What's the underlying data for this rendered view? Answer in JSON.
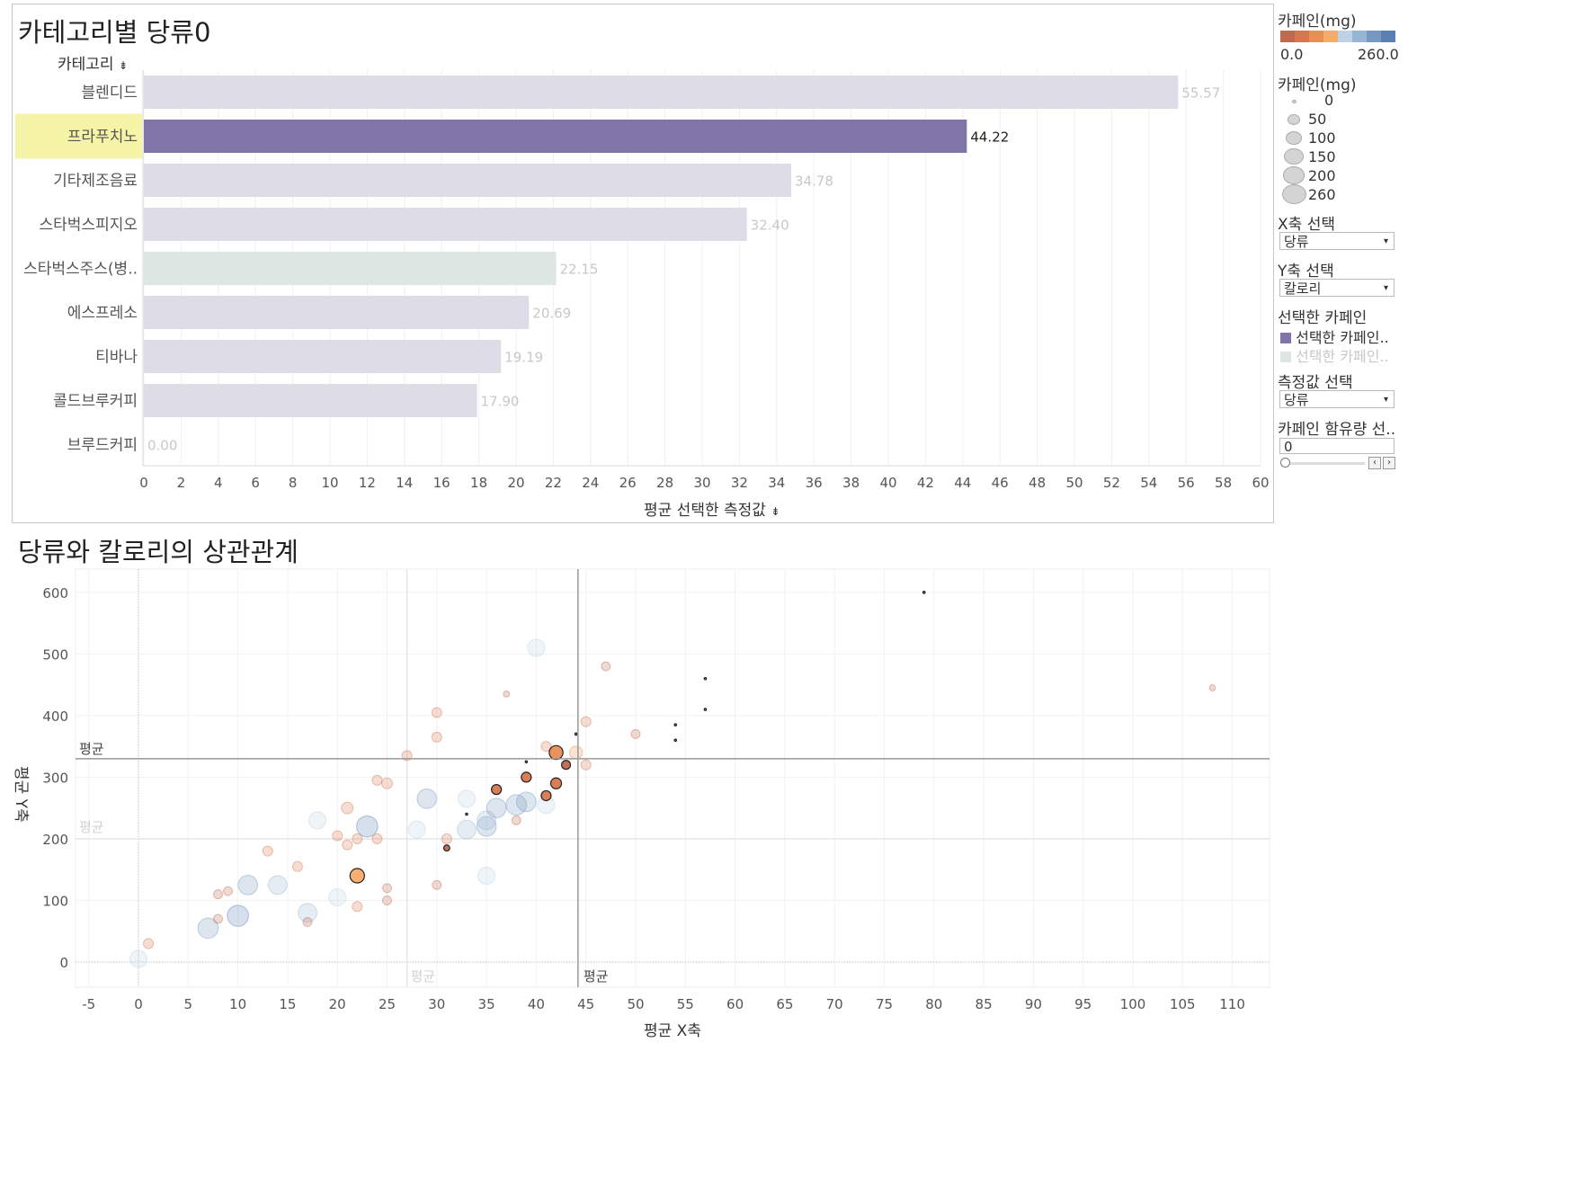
{
  "top_chart": {
    "title": "카테고리별 당류0",
    "category_header": "카테고리",
    "x_axis_label": "평균 선택한 측정값",
    "highlight_color": "#f6f4a6",
    "selected_color": "#8074a8",
    "secondary_color": "#dde6e2",
    "default_color": "#dedce6"
  },
  "bottom_chart": {
    "title": "당류와 칼로리의 상관관계",
    "x_axis_label": "평균 X축",
    "y_axis_label": "평균 Y축",
    "ref_x_label": "평균",
    "ref_x_label_faint": "평균",
    "ref_y_label": "평균",
    "ref_y_label_faint": "평균"
  },
  "sidebar": {
    "color_legend_title": "카페인(mg)",
    "color_min": "0.0",
    "color_max": "260.0",
    "color_scale": [
      "#c1694f",
      "#d8774f",
      "#e98e54",
      "#f6ad6a",
      "#bdd2e4",
      "#97b6d4",
      "#7799c1",
      "#5a7fb2"
    ],
    "size_legend_title": "카페인(mg)",
    "size_items": [
      "0",
      "50",
      "100",
      "150",
      "200",
      "260"
    ],
    "x_select_label": "X축 선택",
    "x_select_value": "당류",
    "y_select_label": "Y축 선택",
    "y_select_value": "칼로리",
    "selected_caffeine_label": "선택한 카페인",
    "selected_caffeine_items": [
      "선택한 카페인..",
      "선택한 카페인.."
    ],
    "measure_select_label": "측정값 선택",
    "measure_select_value": "당류",
    "caffeine_amount_label": "카페인 함유량 선..",
    "caffeine_amount_value": "0"
  },
  "chart_data": [
    {
      "type": "bar",
      "title": "카테고리별 당류0",
      "xlabel": "평균 선택한 측정값",
      "ylabel": "카테고리",
      "categories": [
        "블렌디드",
        "프라푸치노",
        "기타제조음료",
        "스타벅스피지오",
        "스타벅스주스(병..",
        "에스프레소",
        "티바나",
        "콜드브루커피",
        "브루드커피"
      ],
      "values": [
        55.57,
        44.22,
        34.78,
        32.4,
        22.15,
        20.69,
        19.19,
        17.9,
        0.0
      ],
      "value_labels": [
        "55.57",
        "44.22",
        "34.78",
        "32.40",
        "22.15",
        "20.69",
        "19.19",
        "17.90",
        "0.00"
      ],
      "selected": "프라푸치노",
      "secondary": "스타벅스주스(병..",
      "xlim": [
        0,
        60
      ],
      "xticks": [
        0,
        2,
        4,
        6,
        8,
        10,
        12,
        14,
        16,
        18,
        20,
        22,
        24,
        26,
        28,
        30,
        32,
        34,
        36,
        38,
        40,
        42,
        44,
        46,
        48,
        50,
        52,
        54,
        56,
        58,
        60
      ]
    },
    {
      "type": "scatter",
      "title": "당류와 칼로리의 상관관계",
      "xlabel": "평균 X축",
      "ylabel": "평균 Y축",
      "xlim": [
        -5,
        114
      ],
      "ylim": [
        -40,
        630
      ],
      "xticks": [
        -5,
        0,
        5,
        10,
        15,
        20,
        25,
        30,
        35,
        40,
        45,
        50,
        55,
        60,
        65,
        70,
        75,
        80,
        85,
        90,
        95,
        100,
        105,
        110
      ],
      "yticks": [
        0,
        100,
        200,
        300,
        400,
        500,
        600
      ],
      "ref_lines": {
        "x_avg": 44.2,
        "y_avg": 330,
        "x_avg_faint": 27,
        "y_avg_faint": 200
      },
      "points": [
        {
          "x": 0,
          "y": 5,
          "c": 150,
          "s": "faded"
        },
        {
          "x": 1,
          "y": 30,
          "c": 40,
          "s": "faded"
        },
        {
          "x": 7,
          "y": 55,
          "c": 220,
          "s": "faded"
        },
        {
          "x": 8,
          "y": 70,
          "c": 30,
          "s": "faded"
        },
        {
          "x": 8,
          "y": 110,
          "c": 30,
          "s": "faded"
        },
        {
          "x": 9,
          "y": 115,
          "c": 30,
          "s": "faded"
        },
        {
          "x": 10,
          "y": 75,
          "c": 240,
          "s": "faded"
        },
        {
          "x": 11,
          "y": 125,
          "c": 200,
          "s": "faded"
        },
        {
          "x": 13,
          "y": 180,
          "c": 40,
          "s": "faded"
        },
        {
          "x": 14,
          "y": 125,
          "c": 180,
          "s": "faded"
        },
        {
          "x": 16,
          "y": 155,
          "c": 40,
          "s": "faded"
        },
        {
          "x": 17,
          "y": 80,
          "c": 180,
          "s": "faded"
        },
        {
          "x": 17,
          "y": 65,
          "c": 30,
          "s": "faded"
        },
        {
          "x": 18,
          "y": 230,
          "c": 150,
          "s": "faded"
        },
        {
          "x": 20,
          "y": 105,
          "c": 150,
          "s": "faded"
        },
        {
          "x": 20,
          "y": 205,
          "c": 40,
          "s": "faded"
        },
        {
          "x": 21,
          "y": 250,
          "c": 60,
          "s": "faded"
        },
        {
          "x": 21,
          "y": 190,
          "c": 40,
          "s": "faded"
        },
        {
          "x": 22,
          "y": 200,
          "c": 40,
          "s": "faded"
        },
        {
          "x": 22,
          "y": 90,
          "c": 40,
          "s": "faded"
        },
        {
          "x": 23,
          "y": 220,
          "c": 240,
          "s": "faded"
        },
        {
          "x": 24,
          "y": 200,
          "c": 40,
          "s": "faded"
        },
        {
          "x": 24,
          "y": 295,
          "c": 40,
          "s": "faded"
        },
        {
          "x": 25,
          "y": 290,
          "c": 50,
          "s": "faded"
        },
        {
          "x": 25,
          "y": 100,
          "c": 30,
          "s": "faded"
        },
        {
          "x": 25,
          "y": 120,
          "c": 30,
          "s": "faded"
        },
        {
          "x": 27,
          "y": 335,
          "c": 40,
          "s": "faded"
        },
        {
          "x": 28,
          "y": 215,
          "c": 150,
          "s": "faded"
        },
        {
          "x": 29,
          "y": 265,
          "c": 200,
          "s": "faded"
        },
        {
          "x": 30,
          "y": 405,
          "c": 40,
          "s": "faded"
        },
        {
          "x": 30,
          "y": 365,
          "c": 40,
          "s": "faded"
        },
        {
          "x": 30,
          "y": 125,
          "c": 30,
          "s": "faded"
        },
        {
          "x": 31,
          "y": 200,
          "c": 40,
          "s": "faded"
        },
        {
          "x": 33,
          "y": 265,
          "c": 150,
          "s": "faded"
        },
        {
          "x": 33,
          "y": 215,
          "c": 180,
          "s": "faded"
        },
        {
          "x": 35,
          "y": 140,
          "c": 150,
          "s": "faded"
        },
        {
          "x": 35,
          "y": 220,
          "c": 200,
          "s": "faded"
        },
        {
          "x": 35,
          "y": 230,
          "c": 180,
          "s": "faded"
        },
        {
          "x": 36,
          "y": 250,
          "c": 200,
          "s": "faded"
        },
        {
          "x": 38,
          "y": 230,
          "c": 30,
          "s": "faded"
        },
        {
          "x": 38,
          "y": 255,
          "c": 220,
          "s": "faded"
        },
        {
          "x": 39,
          "y": 260,
          "c": 200,
          "s": "faded"
        },
        {
          "x": 40,
          "y": 510,
          "c": 150,
          "s": "faded"
        },
        {
          "x": 41,
          "y": 255,
          "c": 150,
          "s": "faded"
        },
        {
          "x": 41,
          "y": 350,
          "c": 40,
          "s": "faded"
        },
        {
          "x": 44,
          "y": 340,
          "c": 80,
          "s": "faded"
        },
        {
          "x": 45,
          "y": 390,
          "c": 40,
          "s": "faded"
        },
        {
          "x": 45,
          "y": 320,
          "c": 40,
          "s": "faded"
        },
        {
          "x": 47,
          "y": 480,
          "c": 30,
          "s": "faded"
        },
        {
          "x": 50,
          "y": 370,
          "c": 30,
          "s": "faded"
        },
        {
          "x": 37,
          "y": 435,
          "c": 10,
          "s": "faded"
        },
        {
          "x": 108,
          "y": 445,
          "c": 10,
          "s": "faded"
        },
        {
          "x": 22,
          "y": 140,
          "c": 100,
          "s": "selected"
        },
        {
          "x": 31,
          "y": 185,
          "c": 10,
          "s": "selected"
        },
        {
          "x": 36,
          "y": 280,
          "c": 40,
          "s": "selected"
        },
        {
          "x": 39,
          "y": 300,
          "c": 40,
          "s": "selected"
        },
        {
          "x": 39,
          "y": 325,
          "c": 0,
          "s": "selected"
        },
        {
          "x": 41,
          "y": 270,
          "c": 40,
          "s": "selected"
        },
        {
          "x": 42,
          "y": 340,
          "c": 90,
          "s": "selected"
        },
        {
          "x": 42,
          "y": 290,
          "c": 50,
          "s": "selected"
        },
        {
          "x": 43,
          "y": 320,
          "c": 30,
          "s": "selected"
        },
        {
          "x": 44,
          "y": 370,
          "c": 0,
          "s": "selected"
        },
        {
          "x": 79,
          "y": 600,
          "c": 0,
          "s": "selected"
        },
        {
          "x": 57,
          "y": 460,
          "c": 0,
          "s": "selected"
        },
        {
          "x": 57,
          "y": 410,
          "c": 0,
          "s": "selected"
        },
        {
          "x": 54,
          "y": 385,
          "c": 0,
          "s": "selected"
        },
        {
          "x": 54,
          "y": 360,
          "c": 0,
          "s": "selected"
        },
        {
          "x": 33,
          "y": 240,
          "c": 0,
          "s": "selected"
        }
      ]
    }
  ]
}
